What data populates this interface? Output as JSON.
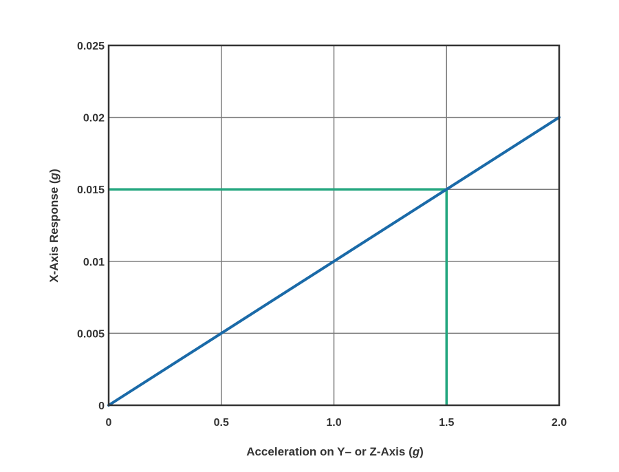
{
  "chart_data": {
    "type": "line",
    "xlabel": {
      "prefix": "Acceleration on Y– or Z-Axis (",
      "unit": "g",
      "suffix": ")"
    },
    "ylabel": {
      "prefix": "X-Axis Response (",
      "unit": "g",
      "suffix": ")"
    },
    "xlim": [
      0,
      2.0
    ],
    "ylim": [
      0,
      0.025
    ],
    "x_ticks": [
      {
        "value": 0,
        "label": "0"
      },
      {
        "value": 0.5,
        "label": "0.5"
      },
      {
        "value": 1.0,
        "label": "1.0"
      },
      {
        "value": 1.5,
        "label": "1.5"
      },
      {
        "value": 2.0,
        "label": "2.0"
      }
    ],
    "y_ticks": [
      {
        "value": 0,
        "label": "0"
      },
      {
        "value": 0.005,
        "label": "0.005"
      },
      {
        "value": 0.01,
        "label": "0.01"
      },
      {
        "value": 0.015,
        "label": "0.015"
      },
      {
        "value": 0.02,
        "label": "0.02"
      },
      {
        "value": 0.025,
        "label": "0.025"
      }
    ],
    "grid": true,
    "series": [
      {
        "x": [
          0,
          0.5,
          1.0,
          1.5,
          2.0
        ],
        "y": [
          0,
          0.005,
          0.01,
          0.015,
          0.02
        ],
        "color": "#1a6aa8"
      }
    ],
    "annotations": [
      {
        "type": "horizontal-guide",
        "y": 0.015,
        "x_from": 0,
        "x_to": 1.5,
        "color": "#22a67e"
      },
      {
        "type": "vertical-guide",
        "x": 1.5,
        "y_from": 0,
        "y_to": 0.015,
        "color": "#22a67e"
      }
    ]
  },
  "colors": {
    "grid": "#7a7a7a",
    "frame": "#333333",
    "text": "#333333"
  }
}
